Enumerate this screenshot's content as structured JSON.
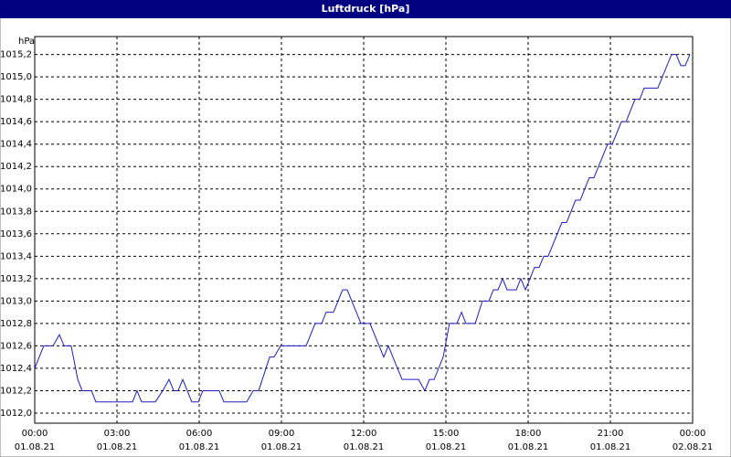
{
  "chart_data": {
    "type": "line",
    "title": "Luftdruck [hPa]",
    "y_unit": "hPa",
    "xlim": [
      0,
      24
    ],
    "ylim": [
      1011.91,
      1015.36
    ],
    "grid": true,
    "xticks": [
      {
        "value": 0,
        "label": "00:00",
        "date": "01.08.21"
      },
      {
        "value": 3,
        "label": "03:00",
        "date": "01.08.21"
      },
      {
        "value": 6,
        "label": "06:00",
        "date": "01.08.21"
      },
      {
        "value": 9,
        "label": "09:00",
        "date": "01.08.21"
      },
      {
        "value": 12,
        "label": "12:00",
        "date": "01.08.21"
      },
      {
        "value": 15,
        "label": "15:00",
        "date": "01.08.21"
      },
      {
        "value": 18,
        "label": "18:00",
        "date": "01.08.21"
      },
      {
        "value": 21,
        "label": "21:00",
        "date": "01.08.21"
      },
      {
        "value": 24,
        "label": "00:00",
        "date": "02.08.21"
      }
    ],
    "yticks": [
      {
        "value": 1012.0,
        "label": "1012,0"
      },
      {
        "value": 1012.2,
        "label": "1012,2"
      },
      {
        "value": 1012.4,
        "label": "1012,4"
      },
      {
        "value": 1012.6,
        "label": "1012,6"
      },
      {
        "value": 1012.8,
        "label": "1012,8"
      },
      {
        "value": 1013.0,
        "label": "1013,0"
      },
      {
        "value": 1013.2,
        "label": "1013,2"
      },
      {
        "value": 1013.4,
        "label": "1013,4"
      },
      {
        "value": 1013.6,
        "label": "1013,6"
      },
      {
        "value": 1013.8,
        "label": "1013,8"
      },
      {
        "value": 1014.0,
        "label": "1014,0"
      },
      {
        "value": 1014.2,
        "label": "1014,2"
      },
      {
        "value": 1014.4,
        "label": "1014,4"
      },
      {
        "value": 1014.6,
        "label": "1014,6"
      },
      {
        "value": 1014.8,
        "label": "1014,8"
      },
      {
        "value": 1015.0,
        "label": "1015,0"
      },
      {
        "value": 1015.2,
        "label": "1015,2"
      }
    ],
    "x": [
      0,
      0.33,
      0.67,
      0.9,
      1.07,
      1.33,
      1.57,
      1.73,
      2.07,
      2.23,
      3.57,
      3.73,
      3.9,
      4.4,
      4.67,
      4.9,
      5.07,
      5.23,
      5.4,
      5.73,
      5.97,
      6.13,
      6.73,
      6.9,
      7.73,
      7.97,
      8.17,
      8.57,
      8.73,
      8.97,
      9.9,
      10.23,
      10.47,
      10.63,
      10.9,
      11.23,
      11.4,
      11.9,
      12.23,
      12.73,
      12.9,
      13.4,
      14,
      14.23,
      14.4,
      14.57,
      14.9,
      15.13,
      15.4,
      15.57,
      15.73,
      16.07,
      16.33,
      16.57,
      16.73,
      16.9,
      17.07,
      17.23,
      17.57,
      17.73,
      17.9,
      18.07,
      18.23,
      18.4,
      18.57,
      18.73,
      19.23,
      19.4,
      19.73,
      19.9,
      20.23,
      20.4,
      20.9,
      21.07,
      21.4,
      21.57,
      21.9,
      22.07,
      22.23,
      22.73,
      23.23,
      23.4,
      23.57,
      23.73,
      23.9
    ],
    "series": [
      {
        "name": "Luftdruck",
        "color": "#1c1cc8",
        "values": [
          1012.4,
          1012.6,
          1012.6,
          1012.7,
          1012.6,
          1012.6,
          1012.3,
          1012.2,
          1012.2,
          1012.1,
          1012.1,
          1012.2,
          1012.1,
          1012.1,
          1012.2,
          1012.3,
          1012.2,
          1012.2,
          1012.3,
          1012.1,
          1012.1,
          1012.2,
          1012.2,
          1012.1,
          1012.1,
          1012.2,
          1012.2,
          1012.5,
          1012.5,
          1012.6,
          1012.6,
          1012.8,
          1012.8,
          1012.9,
          1012.9,
          1013.1,
          1013.1,
          1012.8,
          1012.8,
          1012.5,
          1012.6,
          1012.3,
          1012.3,
          1012.2,
          1012.3,
          1012.3,
          1012.5,
          1012.8,
          1012.8,
          1012.9,
          1012.8,
          1012.8,
          1013.0,
          1013.0,
          1013.1,
          1013.1,
          1013.2,
          1013.1,
          1013.1,
          1013.2,
          1013.1,
          1013.2,
          1013.3,
          1013.3,
          1013.4,
          1013.4,
          1013.7,
          1013.7,
          1013.9,
          1013.9,
          1014.1,
          1014.1,
          1014.4,
          1014.4,
          1014.6,
          1014.6,
          1014.8,
          1014.8,
          1014.9,
          1014.9,
          1015.2,
          1015.2,
          1015.1,
          1015.1,
          1015.2
        ]
      }
    ]
  }
}
